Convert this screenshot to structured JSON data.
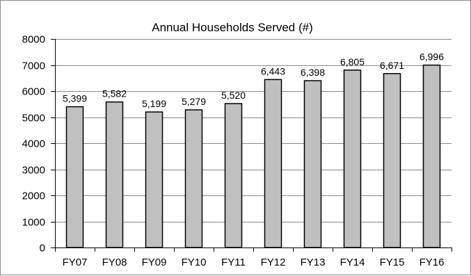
{
  "chart_data": {
    "type": "bar",
    "title": "Annual Households Served (#)",
    "xlabel": "",
    "ylabel": "",
    "categories": [
      "FY07",
      "FY08",
      "FY09",
      "FY10",
      "FY11",
      "FY12",
      "FY13",
      "FY14",
      "FY15",
      "FY16"
    ],
    "values": [
      5399,
      5582,
      5199,
      5279,
      5520,
      6443,
      6398,
      6805,
      6671,
      6996
    ],
    "data_labels": [
      "5,399",
      "5,582",
      "5,199",
      "5,279",
      "5,520",
      "6,443",
      "6,398",
      "6,805",
      "6,671",
      "6,996"
    ],
    "ylim": [
      0,
      8000
    ],
    "yticks": [
      "0",
      "1000",
      "2000",
      "3000",
      "4000",
      "5000",
      "6000",
      "7000",
      "8000"
    ],
    "grid": true,
    "legend": "none",
    "colors": {
      "bar_fill": "#c0c0c0",
      "bar_stroke": "#000000",
      "gridline": "#8a8a8a"
    }
  }
}
